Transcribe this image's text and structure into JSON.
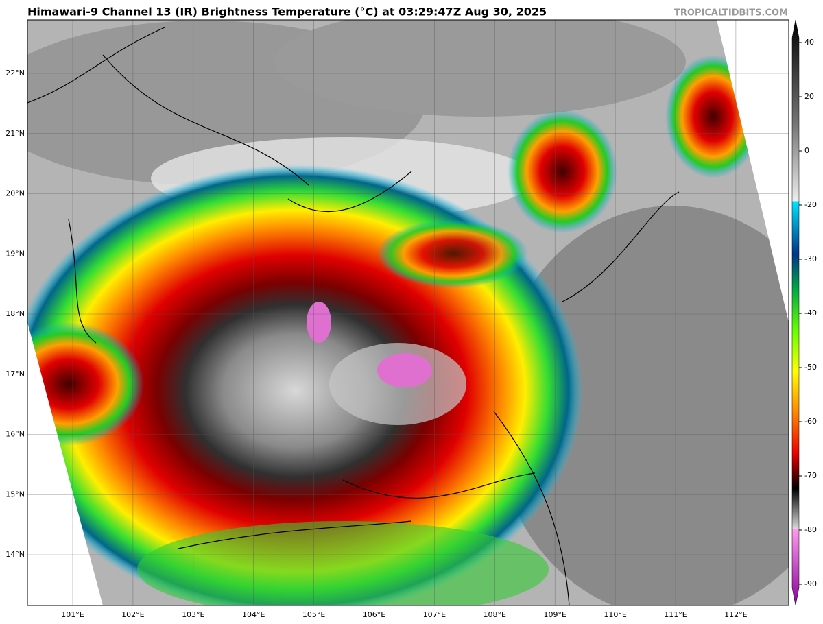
{
  "header": {
    "title": "Himawari-9 Channel 13 (IR) Brightness Temperature (°C) at 03:29:47Z Aug 30, 2025",
    "source": "TROPICALTIDBITS.COM"
  },
  "map": {
    "lat_labels": [
      "22°N",
      "21°N",
      "20°N",
      "19°N",
      "18°N",
      "17°N",
      "16°N",
      "15°N",
      "14°N"
    ],
    "lon_labels": [
      "101°E",
      "102°E",
      "103°E",
      "104°E",
      "105°E",
      "106°E",
      "107°E",
      "108°E",
      "109°E",
      "110°E",
      "111°E",
      "112°E"
    ]
  },
  "colorbar": {
    "ticks": [
      40,
      20,
      0,
      -20,
      -30,
      -40,
      -50,
      -60,
      -70,
      -80,
      -90
    ]
  }
}
